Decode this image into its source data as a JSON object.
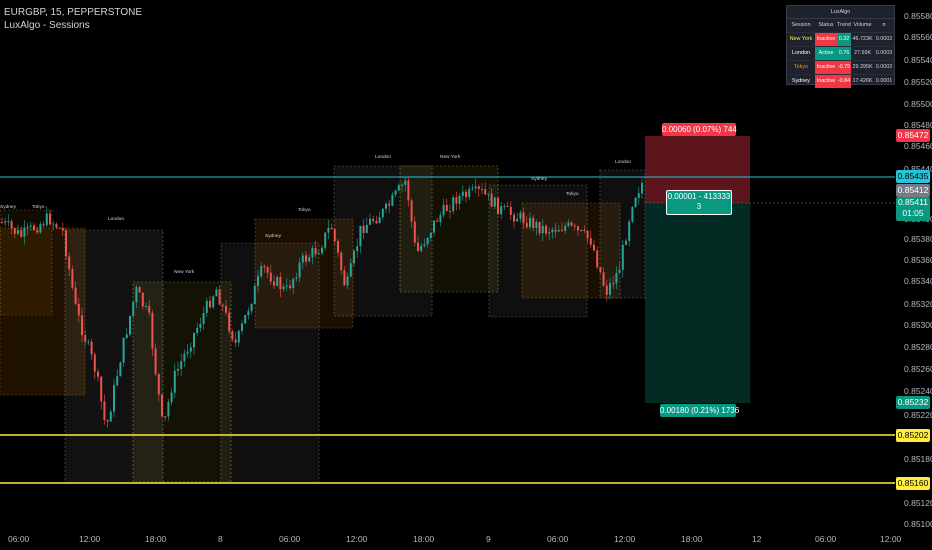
{
  "header": {
    "symbol_line": "EURGBP, 15, PEPPERSTONE",
    "indicator": "LuxAlgo - Sessions"
  },
  "dashboard": {
    "title": "LuxAlgo",
    "columns": [
      "Session",
      "Status",
      "Trend",
      "Volume",
      "σ"
    ],
    "rows": [
      {
        "session": "New York",
        "status": "Inactive",
        "trend": "0.32",
        "volume": "46.723K",
        "sigma": "0.0002",
        "session_color": "#ffeb3b",
        "trend_positive": true
      },
      {
        "session": "London",
        "status": "Active",
        "trend": "0.76",
        "volume": "27.69K",
        "sigma": "0.0003",
        "session_color": "#ffffff",
        "trend_positive": true
      },
      {
        "session": "Tokyo",
        "status": "Inactive",
        "trend": "-0.75",
        "volume": "29.395K",
        "sigma": "0.0002",
        "session_color": "#ff9800",
        "trend_positive": false
      },
      {
        "session": "Sydney",
        "status": "Inactive",
        "trend": "-0.84",
        "volume": "17.426K",
        "sigma": "0.0001",
        "session_color": "#ffffff",
        "trend_positive": false
      }
    ]
  },
  "price_axis": [
    "0.85580",
    "0.85560",
    "0.85540",
    "0.85520",
    "0.85500",
    "0.85480",
    "0.85460",
    "0.85440",
    "0.85400",
    "0.85380",
    "0.85360",
    "0.85340",
    "0.85320",
    "0.85300",
    "0.85280",
    "0.85260",
    "0.85240",
    "0.85220",
    "0.85180",
    "0.85120",
    "0.85100"
  ],
  "time_axis": [
    "06:00",
    "12:00",
    "18:00",
    "8",
    "06:00",
    "12:00",
    "18:00",
    "9",
    "06:00",
    "12:00",
    "18:00",
    "12",
    "06:00",
    "12:00"
  ],
  "price_labels": [
    {
      "text": "0.85472",
      "bg": "#f23645",
      "fg": "#ffffff"
    },
    {
      "text": "0.85435",
      "bg": "#26c6da",
      "fg": "#000000"
    },
    {
      "text": "0.85412",
      "bg": "#787b86",
      "fg": "#ffffff"
    },
    {
      "text": "0.85411",
      "bg": "#089981",
      "fg": "#ffffff"
    },
    {
      "text": "01:05",
      "bg": "#089981",
      "fg": "#ffffff"
    },
    {
      "text": "0.85232",
      "bg": "#089981",
      "fg": "#ffffff"
    },
    {
      "text": "0.85202",
      "bg": "#ffeb3b",
      "fg": "#000000"
    },
    {
      "text": "0.85160",
      "bg": "#ffeb3b",
      "fg": "#000000"
    }
  ],
  "position": {
    "target_label": "0.00060 (0.07%) 744",
    "entry_label_1": "0.00001 - 413333",
    "entry_label_2": "3",
    "stop_label": "0.00180 (0.21%) 1736",
    "target_color": "#f23645",
    "stop_color": "#089981"
  },
  "session_labels": [
    {
      "text": "Sydney",
      "color": "#ffffff"
    },
    {
      "text": "Tokyo",
      "color": "#ff9800"
    },
    {
      "text": "London",
      "color": "#ffffff"
    },
    {
      "text": "New York",
      "color": "#ffeb3b"
    },
    {
      "text": "Tokyo",
      "color": "#ff9800"
    },
    {
      "text": "Sydney",
      "color": "#ffffff"
    },
    {
      "text": "London",
      "color": "#ffffff"
    },
    {
      "text": "New York",
      "color": "#ffeb3b"
    },
    {
      "text": "Sydney",
      "color": "#ffffff"
    },
    {
      "text": "Tokyo",
      "color": "#ff9800"
    },
    {
      "text": "London",
      "color": "#ffffff"
    }
  ],
  "colors": {
    "up": "#26a69a",
    "down": "#ef5350",
    "cyan_line": "#26c6da",
    "yellow_line": "#ffeb3b"
  }
}
